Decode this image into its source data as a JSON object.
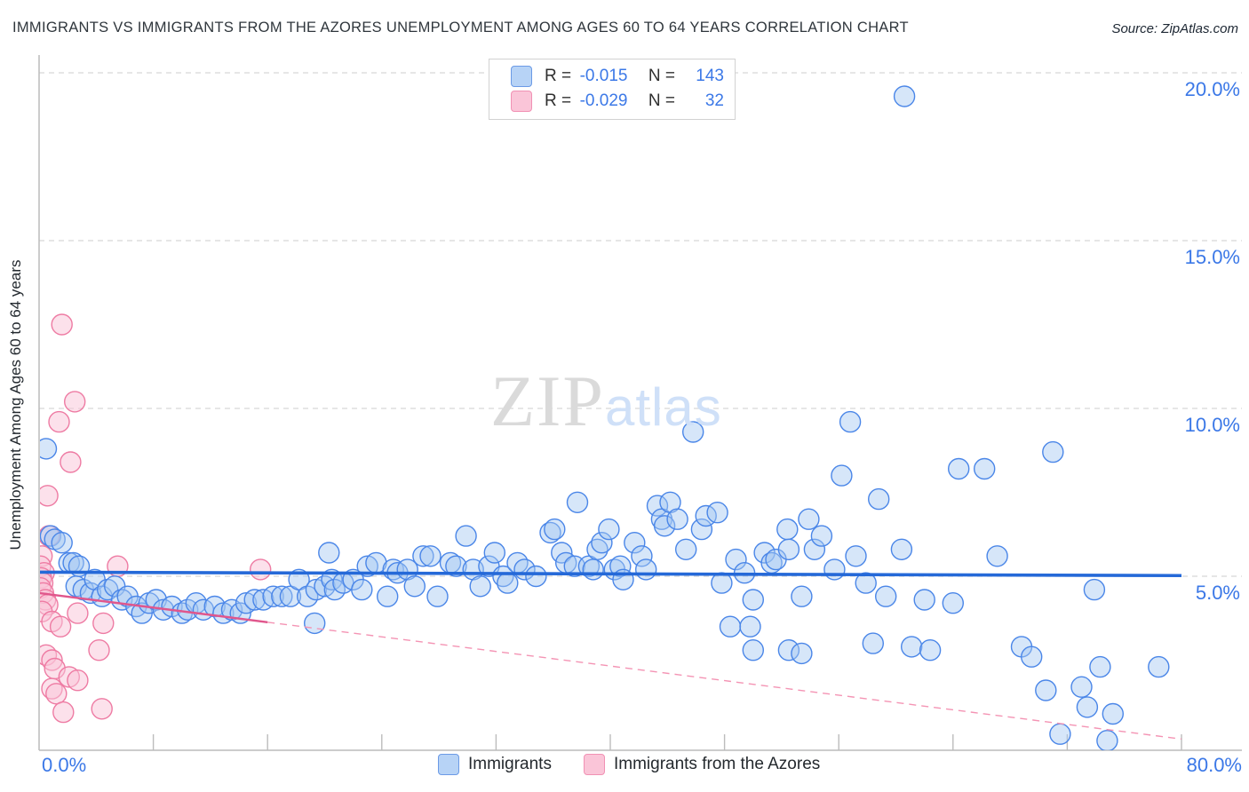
{
  "header": {
    "title": "IMMIGRANTS VS IMMIGRANTS FROM THE AZORES UNEMPLOYMENT AMONG AGES 60 TO 64 YEARS CORRELATION CHART",
    "source": "Source: ZipAtlas.com"
  },
  "legend_box": {
    "series": [
      {
        "r_label": "R =",
        "r_value": "-0.015",
        "n_label": "N =",
        "n_value": "143"
      },
      {
        "r_label": "R =",
        "r_value": "-0.029",
        "n_label": "N =",
        "n_value": "32"
      }
    ]
  },
  "watermark": {
    "zip": "ZIP",
    "atlas": "atlas"
  },
  "axis": {
    "y_label": "Unemployment Among Ages 60 to 64 years",
    "y_ticks": [
      {
        "label": "20.0%",
        "value": 20
      },
      {
        "label": "15.0%",
        "value": 15
      },
      {
        "label": "10.0%",
        "value": 10
      },
      {
        "label": "5.0%",
        "value": 5
      }
    ],
    "x_tick_left": "0.0%",
    "x_tick_right": "80.0%",
    "x_minor_tick_values": [
      8,
      16,
      24,
      32,
      40,
      48,
      56,
      64,
      72,
      80
    ]
  },
  "bottom_legend": {
    "items": [
      {
        "label": "Immigrants"
      },
      {
        "label": "Immigrants from the Azores"
      }
    ]
  },
  "colors": {
    "blue_stroke": "#4a86e8",
    "blue_fill": "rgba(164,199,242,0.45)",
    "pink_stroke": "#ee7ba3",
    "pink_fill": "rgba(250,196,215,0.5)",
    "blue_trend": "#2569d8",
    "pink_trend_solid": "#e0568c",
    "pink_trend_dashed": "#f494b4",
    "gridline": "#d8d8d8",
    "axis_line": "#bcbcbc",
    "tick_label": "#3b78e7"
  },
  "chart_data": {
    "type": "scatter",
    "title": "Immigrants vs Immigrants from the Azores Unemployment Among Ages 60 to 64 years",
    "xlabel_unit": "%",
    "ylabel": "Unemployment Among Ages 60 to 64 years",
    "x_range": [
      0,
      80
    ],
    "y_range": [
      0,
      20.3
    ],
    "grid": "horizontal-dashed",
    "legend_position": "bottom-center",
    "series": [
      {
        "name": "Immigrants",
        "R": -0.015,
        "N": 143,
        "points": [
          [
            0.5,
            8.8
          ],
          [
            0.8,
            6.2
          ],
          [
            1.1,
            6.1
          ],
          [
            1.6,
            6.0
          ],
          [
            2.1,
            5.4
          ],
          [
            2.4,
            5.4
          ],
          [
            2.8,
            5.3
          ],
          [
            2.6,
            4.7
          ],
          [
            3.1,
            4.6
          ],
          [
            3.6,
            4.5
          ],
          [
            3.9,
            4.9
          ],
          [
            4.4,
            4.4
          ],
          [
            4.8,
            4.6
          ],
          [
            5.3,
            4.7
          ],
          [
            5.8,
            4.3
          ],
          [
            6.2,
            4.4
          ],
          [
            6.8,
            4.1
          ],
          [
            7.2,
            3.9
          ],
          [
            7.7,
            4.2
          ],
          [
            8.2,
            4.3
          ],
          [
            8.7,
            4.0
          ],
          [
            9.3,
            4.1
          ],
          [
            10.0,
            3.9
          ],
          [
            10.4,
            4.0
          ],
          [
            11.0,
            4.2
          ],
          [
            11.5,
            4.0
          ],
          [
            12.3,
            4.1
          ],
          [
            12.9,
            3.9
          ],
          [
            13.5,
            4.0
          ],
          [
            14.1,
            3.9
          ],
          [
            14.5,
            4.2
          ],
          [
            15.1,
            4.3
          ],
          [
            15.7,
            4.3
          ],
          [
            16.4,
            4.4
          ],
          [
            17.0,
            4.4
          ],
          [
            17.6,
            4.4
          ],
          [
            18.2,
            4.9
          ],
          [
            18.8,
            4.4
          ],
          [
            19.3,
            3.6
          ],
          [
            19.4,
            4.6
          ],
          [
            20.0,
            4.7
          ],
          [
            20.3,
            5.7
          ],
          [
            20.5,
            4.9
          ],
          [
            20.7,
            4.6
          ],
          [
            21.3,
            4.8
          ],
          [
            22.0,
            4.9
          ],
          [
            22.6,
            4.6
          ],
          [
            23.0,
            5.3
          ],
          [
            23.6,
            5.4
          ],
          [
            24.4,
            4.4
          ],
          [
            24.8,
            5.2
          ],
          [
            25.1,
            5.1
          ],
          [
            25.8,
            5.2
          ],
          [
            26.3,
            4.7
          ],
          [
            26.9,
            5.6
          ],
          [
            27.4,
            5.6
          ],
          [
            27.9,
            4.4
          ],
          [
            28.8,
            5.4
          ],
          [
            29.2,
            5.3
          ],
          [
            29.9,
            6.2
          ],
          [
            30.4,
            5.2
          ],
          [
            30.9,
            4.7
          ],
          [
            31.5,
            5.3
          ],
          [
            31.9,
            5.7
          ],
          [
            32.5,
            5.0
          ],
          [
            32.8,
            4.8
          ],
          [
            33.5,
            5.4
          ],
          [
            34.0,
            5.2
          ],
          [
            34.8,
            5.0
          ],
          [
            35.8,
            6.3
          ],
          [
            36.1,
            6.4
          ],
          [
            36.6,
            5.7
          ],
          [
            36.9,
            5.4
          ],
          [
            37.5,
            5.3
          ],
          [
            37.7,
            7.2
          ],
          [
            38.5,
            5.3
          ],
          [
            38.8,
            5.2
          ],
          [
            39.1,
            5.8
          ],
          [
            39.4,
            6.0
          ],
          [
            39.9,
            6.4
          ],
          [
            40.3,
            5.2
          ],
          [
            40.7,
            5.3
          ],
          [
            40.9,
            4.9
          ],
          [
            41.7,
            6.0
          ],
          [
            42.2,
            5.6
          ],
          [
            42.5,
            5.2
          ],
          [
            43.3,
            7.1
          ],
          [
            43.6,
            6.7
          ],
          [
            43.8,
            6.5
          ],
          [
            44.2,
            7.2
          ],
          [
            44.7,
            6.7
          ],
          [
            45.3,
            5.8
          ],
          [
            45.8,
            9.3
          ],
          [
            46.4,
            6.4
          ],
          [
            46.7,
            6.8
          ],
          [
            47.5,
            6.9
          ],
          [
            47.8,
            4.8
          ],
          [
            48.4,
            3.5
          ],
          [
            48.8,
            5.5
          ],
          [
            49.4,
            5.1
          ],
          [
            49.8,
            3.5
          ],
          [
            50.0,
            4.3
          ],
          [
            50.8,
            5.7
          ],
          [
            51.3,
            5.4
          ],
          [
            51.6,
            5.5
          ],
          [
            52.4,
            6.4
          ],
          [
            52.5,
            5.8
          ],
          [
            50.0,
            2.8
          ],
          [
            52.5,
            2.8
          ],
          [
            53.4,
            2.7
          ],
          [
            53.4,
            4.4
          ],
          [
            53.9,
            6.7
          ],
          [
            54.3,
            5.8
          ],
          [
            54.8,
            6.2
          ],
          [
            55.7,
            5.2
          ],
          [
            56.2,
            8.0
          ],
          [
            56.8,
            9.6
          ],
          [
            57.2,
            5.6
          ],
          [
            57.9,
            4.8
          ],
          [
            58.4,
            3.0
          ],
          [
            58.8,
            7.3
          ],
          [
            59.3,
            4.4
          ],
          [
            60.4,
            5.8
          ],
          [
            60.6,
            19.3
          ],
          [
            61.1,
            2.9
          ],
          [
            62.0,
            4.3
          ],
          [
            62.4,
            2.8
          ],
          [
            64.0,
            4.2
          ],
          [
            64.4,
            8.2
          ],
          [
            66.2,
            8.2
          ],
          [
            67.1,
            5.6
          ],
          [
            68.8,
            2.9
          ],
          [
            69.5,
            2.6
          ],
          [
            70.5,
            1.6
          ],
          [
            71.0,
            8.7
          ],
          [
            71.5,
            0.3
          ],
          [
            73.0,
            1.7
          ],
          [
            73.4,
            1.1
          ],
          [
            73.9,
            4.6
          ],
          [
            74.3,
            2.3
          ],
          [
            74.8,
            0.1
          ],
          [
            75.2,
            0.9
          ],
          [
            78.4,
            2.3
          ]
        ],
        "trend": {
          "x1": 0,
          "y1": 5.12,
          "x2": 80,
          "y2": 5.02,
          "style": "solid"
        }
      },
      {
        "name": "Immigrants from the Azores",
        "R": -0.029,
        "N": 32,
        "points": [
          [
            1.6,
            12.5
          ],
          [
            2.5,
            10.2
          ],
          [
            1.4,
            9.6
          ],
          [
            2.2,
            8.4
          ],
          [
            0.6,
            7.4
          ],
          [
            0.7,
            6.2
          ],
          [
            5.5,
            5.3
          ],
          [
            15.5,
            5.2
          ],
          [
            0.2,
            5.6
          ],
          [
            0.1,
            5.3
          ],
          [
            0.35,
            5.1
          ],
          [
            0.15,
            4.95
          ],
          [
            0.25,
            4.8
          ],
          [
            0.1,
            4.65
          ],
          [
            0.3,
            4.5
          ],
          [
            0.45,
            4.3
          ],
          [
            0.6,
            4.15
          ],
          [
            0.2,
            3.95
          ],
          [
            0.9,
            3.65
          ],
          [
            1.5,
            3.5
          ],
          [
            2.7,
            3.9
          ],
          [
            4.5,
            3.6
          ],
          [
            4.2,
            2.8
          ],
          [
            0.5,
            2.65
          ],
          [
            0.9,
            2.5
          ],
          [
            1.1,
            2.25
          ],
          [
            2.1,
            2.0
          ],
          [
            2.7,
            1.9
          ],
          [
            0.9,
            1.65
          ],
          [
            1.2,
            1.5
          ],
          [
            4.4,
            1.05
          ],
          [
            1.7,
            0.95
          ]
        ],
        "trend": {
          "x1": 0,
          "y1": 4.5,
          "x2": 80,
          "y2": 0.15,
          "style": "solid-then-dashed",
          "solid_until_x": 16
        }
      }
    ]
  }
}
